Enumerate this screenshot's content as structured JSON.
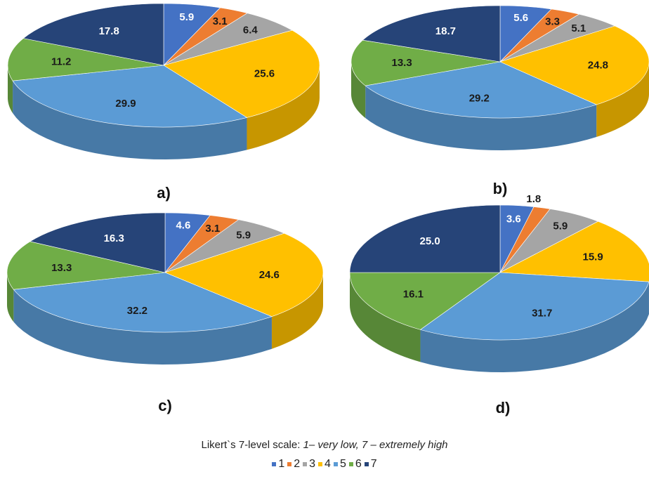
{
  "colors": {
    "1": "#4472c4",
    "2": "#ed7d31",
    "3": "#a5a5a5",
    "4": "#ffc000",
    "5": "#5b9bd5",
    "6": "#70ad47",
    "7": "#264478"
  },
  "caption": {
    "prefix": "Likert`s 7-level scale: ",
    "italic": "1– very low, 7 – extremely high"
  },
  "legend": [
    "1",
    "2",
    "3",
    "4",
    "5",
    "6",
    "7"
  ],
  "chart_data": [
    {
      "type": "pie",
      "panel": "a)",
      "categories": [
        "1",
        "2",
        "3",
        "4",
        "5",
        "6",
        "7"
      ],
      "values": [
        5.9,
        3.1,
        6.4,
        25.6,
        29.9,
        11.2,
        17.8
      ],
      "labels": [
        "5.9",
        "3.1",
        "6.4",
        "25.6",
        "29.9",
        "11.2",
        "17.8"
      ]
    },
    {
      "type": "pie",
      "panel": "b)",
      "categories": [
        "1",
        "2",
        "3",
        "4",
        "5",
        "6",
        "7"
      ],
      "values": [
        5.6,
        3.3,
        5.1,
        24.8,
        29.2,
        13.3,
        18.7
      ],
      "labels": [
        "5.6",
        "3.3",
        "5.1",
        "24.8",
        "29.2",
        "13.3",
        "18.7"
      ]
    },
    {
      "type": "pie",
      "panel": "c)",
      "categories": [
        "1",
        "2",
        "3",
        "4",
        "5",
        "6",
        "7"
      ],
      "values": [
        4.6,
        3.1,
        5.9,
        24.6,
        32.2,
        13.3,
        16.3
      ],
      "labels": [
        "4.6",
        "3.1",
        "5.9",
        "24.6",
        "32.2",
        "13.3",
        "16.3"
      ]
    },
    {
      "type": "pie",
      "panel": "d)",
      "categories": [
        "1",
        "2",
        "3",
        "4",
        "5",
        "6",
        "7"
      ],
      "values": [
        3.6,
        1.8,
        5.9,
        15.9,
        31.7,
        16.1,
        25.0
      ],
      "labels": [
        "3.6",
        "1.8",
        "5.9",
        "15.9",
        "31.7",
        "16.1",
        "25.0"
      ]
    }
  ]
}
